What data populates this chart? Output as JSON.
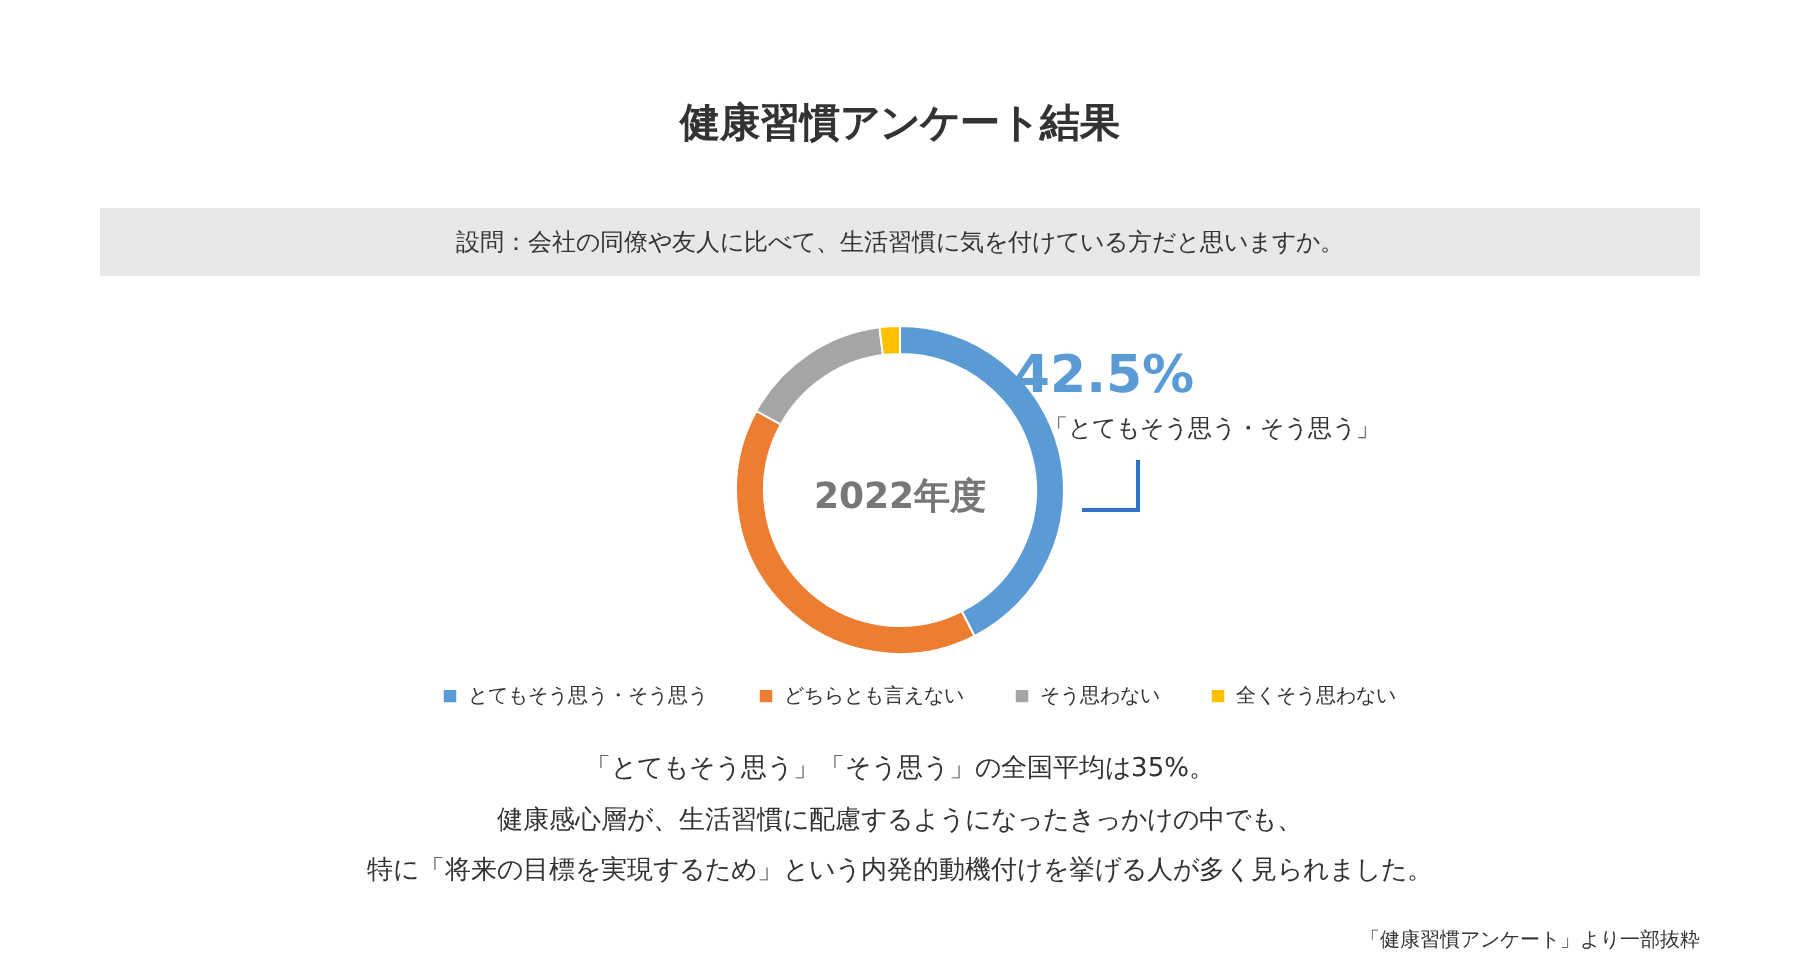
{
  "chart_data": {
    "type": "donut",
    "title": "健康習慣アンケート結果",
    "subtitle": "設問：会社の同僚や友人に比べて、生活習慣に気を付けている方だと思いますか。",
    "categories": [
      "とてもそう思う・そう思う",
      "どちらとも言えない",
      "そう思わない",
      "全くそう思わない"
    ],
    "values": [
      42.5,
      40.5,
      15.0,
      2.0
    ],
    "colors": [
      "#5b9bd5",
      "#ed7d31",
      "#a5a5a5",
      "#ffc000"
    ],
    "value_labels": [
      "42.5%",
      null,
      null,
      null
    ],
    "legend": "bottom",
    "annotations": [
      "「とてもそう思う・そう思う」",
      "2022年度",
      "「とてもそう思う」「そう思う」の全国平均は35%。",
      "健康感心層が、生活習慣に配慮するようになったきっかけの中でも、",
      "特に「将来の目標を実現するため」という内発的動機付けを挙げる人が多く見られました。",
      "「健康習慣アンケート」より一部抜粋"
    ]
  }
}
